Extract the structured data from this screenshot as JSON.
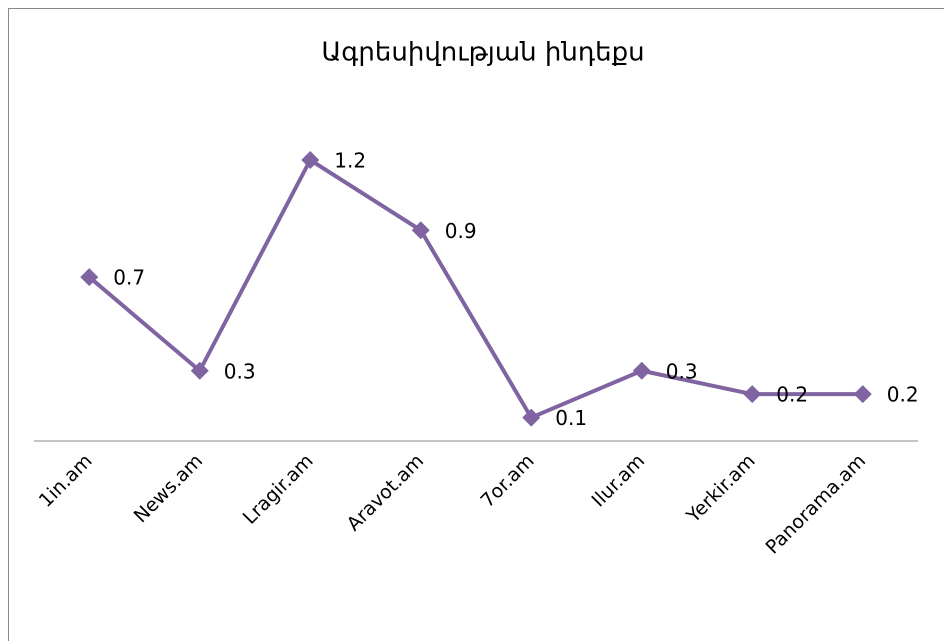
{
  "chart_data": {
    "type": "line",
    "title": "Ագրեսիվության ինդեքս",
    "categories": [
      "1in.am",
      "News.am",
      "Lragir.am",
      "Aravot.am",
      "7or.am",
      "Ilur.am",
      "Yerkir.am",
      "Panorama.am"
    ],
    "series": [
      {
        "name": "Ագրեսիվության ինդեքս",
        "color": "#8064a2",
        "values": [
          0.7,
          0.3,
          1.2,
          0.9,
          0.1,
          0.3,
          0.2,
          0.2
        ]
      }
    ]
  }
}
